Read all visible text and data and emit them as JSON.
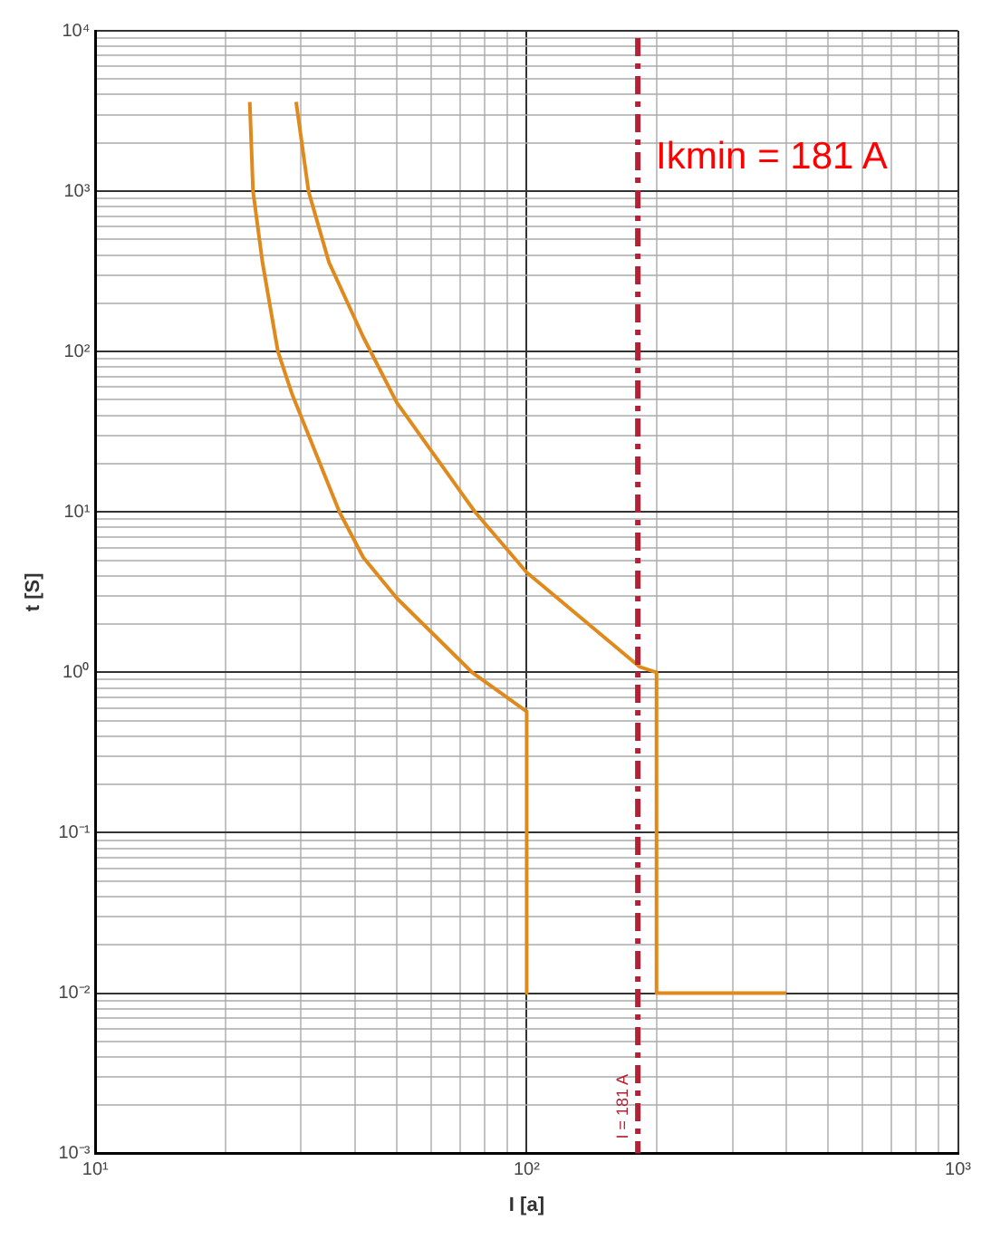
{
  "chart_data": {
    "type": "line",
    "xlabel": "I [a]",
    "ylabel": "t [S]",
    "log": "xy",
    "grid": true,
    "legend": false,
    "marker": "none",
    "line_style": "solid",
    "xlim": [
      10,
      1000
    ],
    "ylim": [
      0.001,
      10000
    ],
    "xticks": [
      {
        "value": 10,
        "label": "10¹"
      },
      {
        "value": 100,
        "label": "10²"
      },
      {
        "value": 1000,
        "label": "10³"
      }
    ],
    "yticks": [
      {
        "value": 0.001,
        "label": "10⁻³"
      },
      {
        "value": 0.01,
        "label": "10⁻²"
      },
      {
        "value": 0.1,
        "label": "10⁻¹"
      },
      {
        "value": 1,
        "label": "10⁰"
      },
      {
        "value": 10,
        "label": "10¹"
      },
      {
        "value": 100,
        "label": "10²"
      },
      {
        "value": 1000,
        "label": "10³"
      },
      {
        "value": 10000,
        "label": "10⁴"
      }
    ],
    "series": [
      {
        "color": "#e08a1e",
        "x": [
          22.8,
          23.2,
          24.4,
          26.5,
          28.6,
          36.8,
          41.8,
          50,
          74.7,
          100,
          100
        ],
        "values": [
          3600,
          1000,
          360,
          100,
          54,
          10,
          5.2,
          2.9,
          1.0,
          0.57,
          0.01
        ]
      },
      {
        "color": "#e08a1e",
        "x": [
          29.2,
          31.2,
          34.8,
          41.8,
          50,
          75.9,
          100,
          183,
          200,
          200,
          400
        ],
        "values": [
          3600,
          1000,
          360,
          123,
          48,
          10,
          4.2,
          1.08,
          1.0,
          0.01,
          0.01
        ]
      }
    ],
    "ref_lines": [
      {
        "axis": "x",
        "value": 181,
        "label": "I = 181 A",
        "color": "#b22234",
        "line_style": "dashed"
      }
    ],
    "annotations": [
      "Ikmin = 181 A"
    ]
  }
}
